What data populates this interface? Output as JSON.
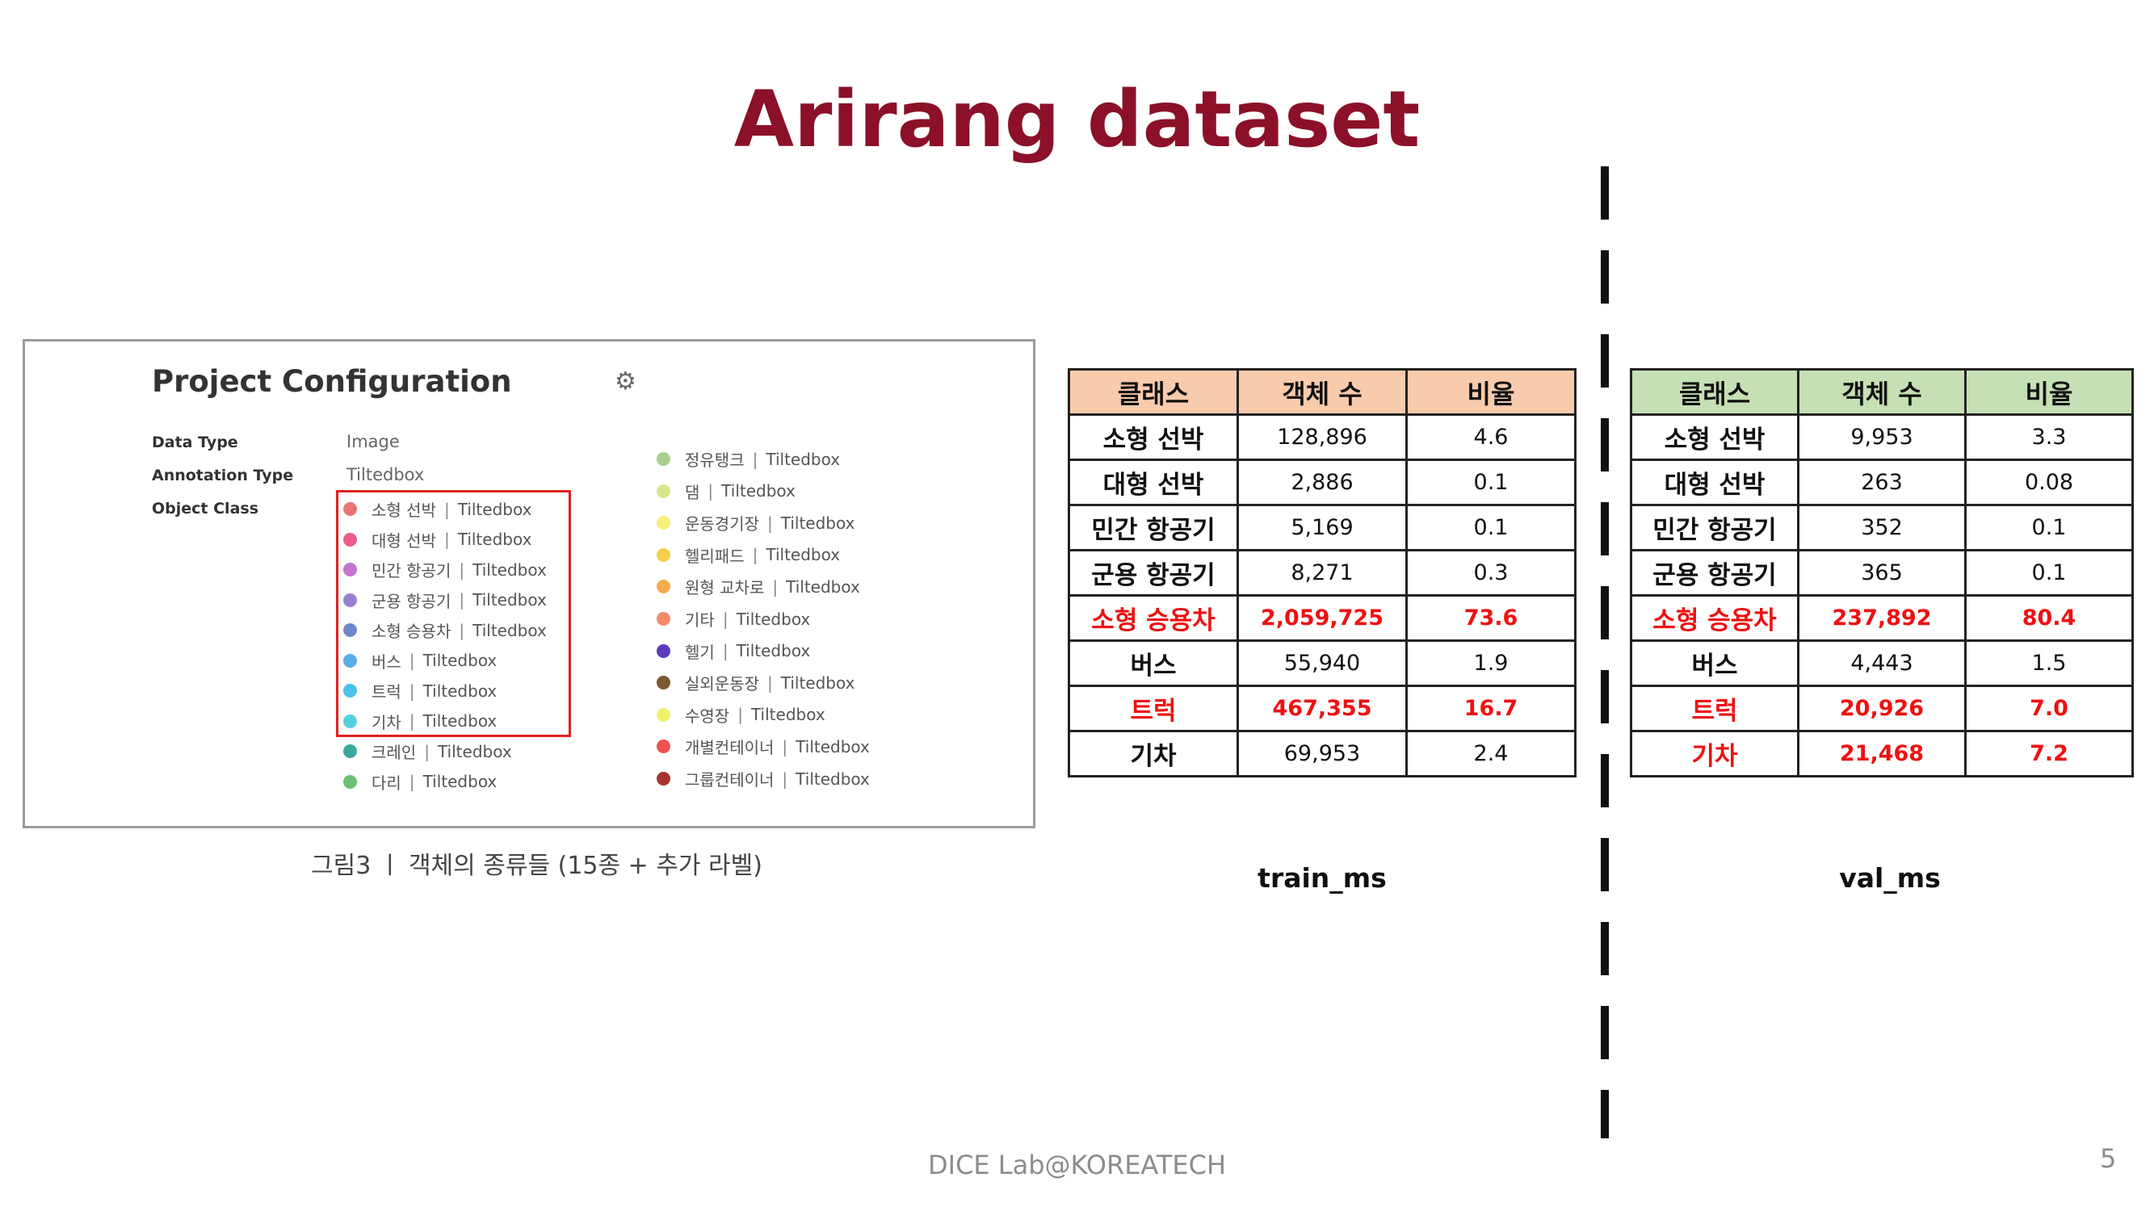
{
  "slide": {
    "title": "Arirang dataset",
    "footer": "DICE  Lab@KOREATECH",
    "page_number": "5"
  },
  "config": {
    "title": "Project Configuration",
    "gear_icon": "gear-icon",
    "data_type_label": "Data Type",
    "data_type_value": "Image",
    "annotation_type_label": "Annotation Type",
    "annotation_type_value": "Tiltedbox",
    "object_class_label": "Object Class",
    "classes_left": [
      {
        "name": "소형 선박",
        "type": "Tiltedbox",
        "color": "#e87474"
      },
      {
        "name": "대형 선박",
        "type": "Tiltedbox",
        "color": "#ec5a8a"
      },
      {
        "name": "민간 항공기",
        "type": "Tiltedbox",
        "color": "#c174d0"
      },
      {
        "name": "군용 항공기",
        "type": "Tiltedbox",
        "color": "#9b7fd1"
      },
      {
        "name": "소형 승용차",
        "type": "Tiltedbox",
        "color": "#6f86c9"
      },
      {
        "name": "버스",
        "type": "Tiltedbox",
        "color": "#5aaee8"
      },
      {
        "name": "트럭",
        "type": "Tiltedbox",
        "color": "#4cc1ea"
      },
      {
        "name": "기차",
        "type": "Tiltedbox",
        "color": "#56d0de"
      },
      {
        "name": "크레인",
        "type": "Tiltedbox",
        "color": "#3aa89a"
      },
      {
        "name": "다리",
        "type": "Tiltedbox",
        "color": "#6dbf73"
      }
    ],
    "classes_right": [
      {
        "name": "정유탱크",
        "type": "Tiltedbox",
        "color": "#a8d08d"
      },
      {
        "name": "댐",
        "type": "Tiltedbox",
        "color": "#d6e68a"
      },
      {
        "name": "운동경기장",
        "type": "Tiltedbox",
        "color": "#f7ef7a"
      },
      {
        "name": "헬리패드",
        "type": "Tiltedbox",
        "color": "#f6cf4a"
      },
      {
        "name": "원형 교차로",
        "type": "Tiltedbox",
        "color": "#f4ad4d"
      },
      {
        "name": "기타",
        "type": "Tiltedbox",
        "color": "#f58a6b"
      },
      {
        "name": "헬기",
        "type": "Tiltedbox",
        "color": "#5e3bb8"
      },
      {
        "name": "실외운동장",
        "type": "Tiltedbox",
        "color": "#7a5a2e"
      },
      {
        "name": "수영장",
        "type": "Tiltedbox",
        "color": "#eef26a"
      },
      {
        "name": "개별컨테이너",
        "type": "Tiltedbox",
        "color": "#f05050"
      },
      {
        "name": "그룹컨테이너",
        "type": "Tiltedbox",
        "color": "#a83232"
      }
    ],
    "caption": "그림3 ㅣ 객체의 종류들 (15종 + 추가 라벨)"
  },
  "tables": {
    "headers": [
      "클래스",
      "객체 수",
      "비율"
    ],
    "train": {
      "label": "train_ms",
      "rows": [
        {
          "cls": "소형 선박",
          "count": "128,896",
          "ratio": "4.6",
          "hl": false
        },
        {
          "cls": "대형 선박",
          "count": "2,886",
          "ratio": "0.1",
          "hl": false
        },
        {
          "cls": "민간 항공기",
          "count": "5,169",
          "ratio": "0.1",
          "hl": false
        },
        {
          "cls": "군용 항공기",
          "count": "8,271",
          "ratio": "0.3",
          "hl": false
        },
        {
          "cls": "소형 승용차",
          "count": "2,059,725",
          "ratio": "73.6",
          "hl": true
        },
        {
          "cls": "버스",
          "count": "55,940",
          "ratio": "1.9",
          "hl": false
        },
        {
          "cls": "트럭",
          "count": "467,355",
          "ratio": "16.7",
          "hl": true
        },
        {
          "cls": "기차",
          "count": "69,953",
          "ratio": "2.4",
          "hl": false
        }
      ]
    },
    "val": {
      "label": "val_ms",
      "rows": [
        {
          "cls": "소형 선박",
          "count": "9,953",
          "ratio": "3.3",
          "hl": false
        },
        {
          "cls": "대형 선박",
          "count": "263",
          "ratio": "0.08",
          "hl": false
        },
        {
          "cls": "민간 항공기",
          "count": "352",
          "ratio": "0.1",
          "hl": false
        },
        {
          "cls": "군용 항공기",
          "count": "365",
          "ratio": "0.1",
          "hl": false
        },
        {
          "cls": "소형 승용차",
          "count": "237,892",
          "ratio": "80.4",
          "hl": true
        },
        {
          "cls": "버스",
          "count": "4,443",
          "ratio": "1.5",
          "hl": false
        },
        {
          "cls": "트럭",
          "count": "20,926",
          "ratio": "7.0",
          "hl": true
        },
        {
          "cls": "기차",
          "count": "21,468",
          "ratio": "7.2",
          "hl": true
        }
      ]
    }
  }
}
